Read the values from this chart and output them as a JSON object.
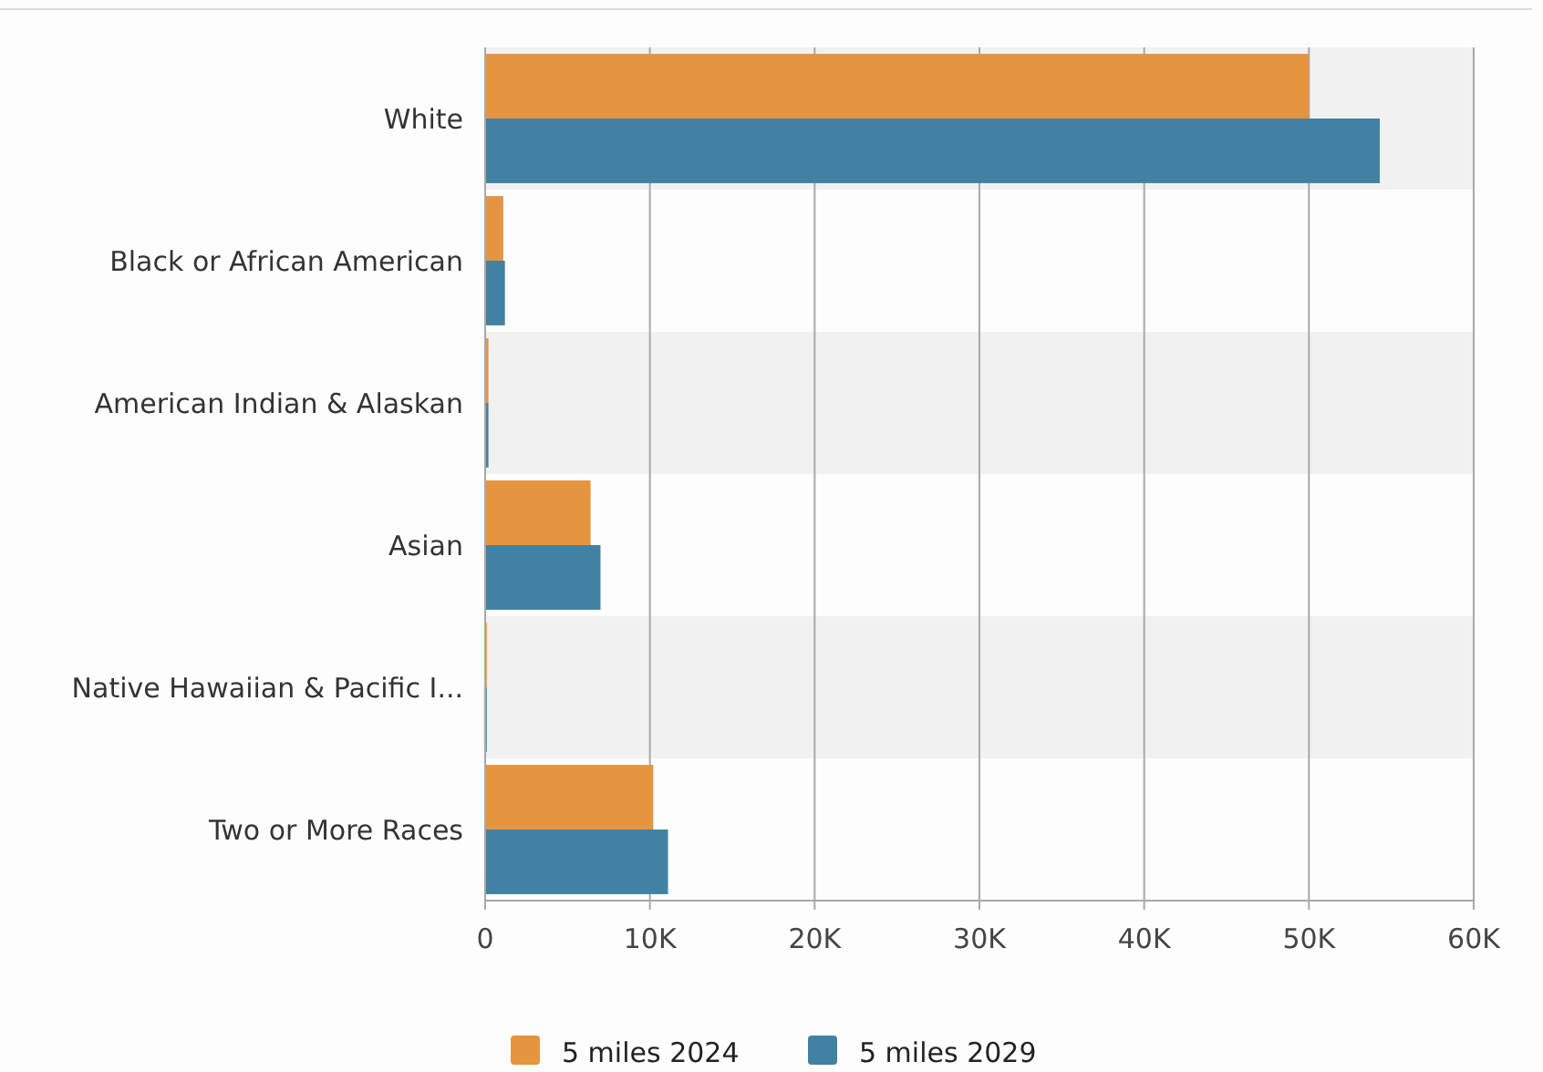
{
  "chart_data": {
    "type": "bar",
    "orientation": "horizontal",
    "categories": [
      "White",
      "Black or African American",
      "American Indian & Alaskan",
      "Asian",
      "Native Hawaiian & Pacific I...",
      "Two or More Races"
    ],
    "series": [
      {
        "name": "5 miles 2024",
        "color": "#e5943f",
        "values": [
          50000,
          1100,
          200,
          6400,
          100,
          10200
        ]
      },
      {
        "name": "5 miles 2029",
        "color": "#4182a3",
        "values": [
          54300,
          1200,
          200,
          7000,
          100,
          11100
        ]
      }
    ],
    "xlim": [
      0,
      60000
    ],
    "xticks": [
      {
        "value": 0,
        "label": "0"
      },
      {
        "value": 10000,
        "label": "10K"
      },
      {
        "value": 20000,
        "label": "20K"
      },
      {
        "value": 30000,
        "label": "30K"
      },
      {
        "value": 40000,
        "label": "40K"
      },
      {
        "value": 50000,
        "label": "50K"
      },
      {
        "value": 60000,
        "label": "60K"
      }
    ],
    "grid": "x",
    "legend": "bottom"
  }
}
